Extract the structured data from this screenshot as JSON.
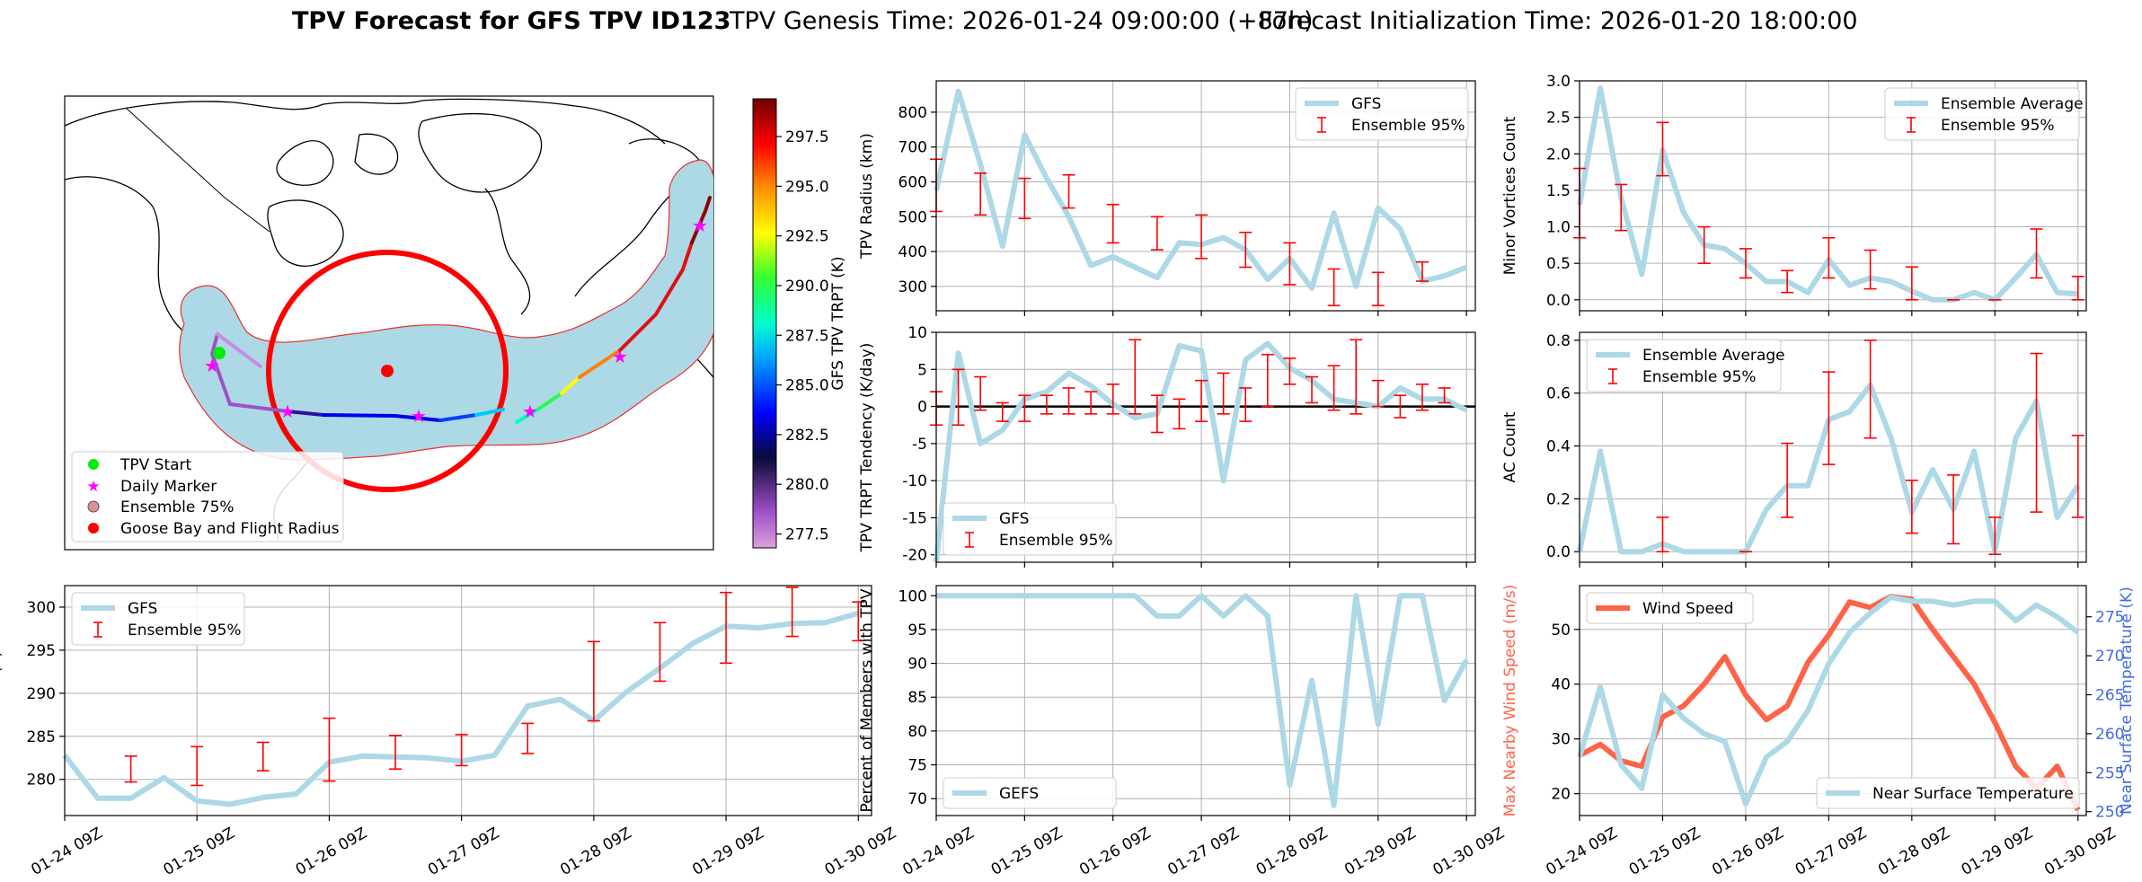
{
  "figure": {
    "title_main": "TPV Forecast for GFS TPV ID123",
    "title_genesis": "TPV Genesis Time: 2026-01-24 09:00:00 (+87h)",
    "title_init": "Forecast Initialization Time: 2026-01-20 18:00:00"
  },
  "colors": {
    "gfs_line": "#add8e6",
    "errorbar": "#ff0000",
    "wind": "#ff6347",
    "temp_axis": "#4169e1",
    "buffer_fill": "#add8e6",
    "circle": "#ff0000"
  },
  "map_panel": {
    "colorbar_label": "GFS TPV TRPT (K)",
    "colorbar_ticks": [
      "277.5",
      "280.0",
      "282.5",
      "285.0",
      "287.5",
      "290.0",
      "292.5",
      "295.0",
      "297.5"
    ],
    "colorbar_range": [
      276.8,
      299.4
    ],
    "legend": [
      {
        "label": "TPV Start",
        "icon": "green-dot"
      },
      {
        "label": "Daily Marker",
        "icon": "magenta-star"
      },
      {
        "label": "Ensemble 75%",
        "icon": "ensemble-circle"
      },
      {
        "label": "Goose Bay and Flight Radius",
        "icon": "red-dot"
      }
    ]
  },
  "time_ticks": [
    "01-24 09Z",
    "01-25 09Z",
    "01-26 09Z",
    "01-27 09Z",
    "01-28 09Z",
    "01-29 09Z",
    "01-30 09Z"
  ],
  "chart_data": [
    {
      "id": "radius",
      "type": "line",
      "ylabel": "TPV Radius (km)",
      "ylim": [
        230,
        890
      ],
      "yticks": [
        "300",
        "400",
        "500",
        "600",
        "700",
        "800"
      ],
      "ytick_values": [
        300,
        400,
        500,
        600,
        700,
        800
      ],
      "legend": [
        "GFS",
        "Ensemble 95%"
      ],
      "legend_pos": "top-right",
      "x": [
        0,
        0.25,
        0.5,
        0.75,
        1,
        1.25,
        1.5,
        1.75,
        2,
        2.25,
        2.5,
        2.75,
        3,
        3.25,
        3.5,
        3.75,
        4,
        4.25,
        4.5,
        4.75,
        5,
        5.25,
        5.5,
        5.75,
        6
      ],
      "series": [
        {
          "name": "GFS",
          "values": [
            575,
            860,
            650,
            415,
            735,
            610,
            500,
            360,
            385,
            355,
            325,
            425,
            420,
            440,
            405,
            320,
            380,
            295,
            510,
            300,
            525,
            465,
            315,
            330,
            355
          ]
        }
      ],
      "errorbars": [
        {
          "x": 0,
          "lo": 515,
          "hi": 665
        },
        {
          "x": 0.5,
          "lo": 505,
          "hi": 625
        },
        {
          "x": 1,
          "lo": 495,
          "hi": 610
        },
        {
          "x": 1.5,
          "lo": 525,
          "hi": 620
        },
        {
          "x": 2,
          "lo": 425,
          "hi": 535
        },
        {
          "x": 2.5,
          "lo": 405,
          "hi": 500
        },
        {
          "x": 3,
          "lo": 380,
          "hi": 505
        },
        {
          "x": 3.5,
          "lo": 355,
          "hi": 455
        },
        {
          "x": 4,
          "lo": 305,
          "hi": 425
        },
        {
          "x": 4.5,
          "lo": 245,
          "hi": 350
        },
        {
          "x": 5,
          "lo": 245,
          "hi": 340
        },
        {
          "x": 5.5,
          "lo": 315,
          "hi": 370
        }
      ]
    },
    {
      "id": "minor",
      "type": "line",
      "ylabel": "Minor Vortices Count",
      "ylim": [
        -0.15,
        3.0
      ],
      "yticks": [
        "0.0",
        "0.5",
        "1.0",
        "1.5",
        "2.0",
        "2.5",
        "3.0"
      ],
      "ytick_values": [
        0,
        0.5,
        1.0,
        1.5,
        2.0,
        2.5,
        3.0
      ],
      "legend": [
        "Ensemble Average",
        "Ensemble 95%"
      ],
      "legend_pos": "top-right",
      "x": [
        0,
        0.25,
        0.5,
        0.75,
        1,
        1.25,
        1.5,
        1.75,
        2,
        2.25,
        2.5,
        2.75,
        3,
        3.25,
        3.5,
        3.75,
        4,
        4.25,
        4.5,
        4.75,
        5,
        5.25,
        5.5,
        5.75,
        6
      ],
      "series": [
        {
          "name": "Ensemble Average",
          "values": [
            1.3,
            2.9,
            1.4,
            0.35,
            2.05,
            1.2,
            0.75,
            0.7,
            0.5,
            0.25,
            0.25,
            0.1,
            0.55,
            0.2,
            0.3,
            0.25,
            0.12,
            0.0,
            0.0,
            0.1,
            0.0,
            0.3,
            0.62,
            0.1,
            0.08
          ]
        }
      ],
      "errorbars": [
        {
          "x": 0,
          "lo": 0.85,
          "hi": 1.8
        },
        {
          "x": 0.5,
          "lo": 0.95,
          "hi": 1.58
        },
        {
          "x": 1,
          "lo": 1.7,
          "hi": 2.43
        },
        {
          "x": 1.5,
          "lo": 0.5,
          "hi": 1.0
        },
        {
          "x": 2,
          "lo": 0.3,
          "hi": 0.7
        },
        {
          "x": 2.5,
          "lo": 0.1,
          "hi": 0.4
        },
        {
          "x": 3,
          "lo": 0.3,
          "hi": 0.85
        },
        {
          "x": 3.5,
          "lo": 0.15,
          "hi": 0.68
        },
        {
          "x": 4,
          "lo": 0.0,
          "hi": 0.45
        },
        {
          "x": 4.5,
          "lo": 0.0,
          "hi": 0.0
        },
        {
          "x": 5,
          "lo": 0.0,
          "hi": 0.0
        },
        {
          "x": 5.5,
          "lo": 0.3,
          "hi": 0.97
        },
        {
          "x": 6,
          "lo": 0.0,
          "hi": 0.32
        }
      ]
    },
    {
      "id": "tendency",
      "type": "line",
      "ylabel": "TPV TRPT Tendency (K/day)",
      "ylim": [
        -21,
        10
      ],
      "yticks": [
        "-20",
        "-15",
        "-10",
        "-5",
        "0",
        "5",
        "10"
      ],
      "ytick_values": [
        -20,
        -15,
        -10,
        -5,
        0,
        5,
        10
      ],
      "zero_line": true,
      "legend": [
        "GFS",
        "Ensemble 95%"
      ],
      "legend_pos": "bottom-left",
      "x": [
        0,
        0.25,
        0.5,
        0.75,
        1,
        1.25,
        1.5,
        1.75,
        2,
        2.25,
        2.5,
        2.75,
        3,
        3.25,
        3.5,
        3.75,
        4,
        4.25,
        4.5,
        4.75,
        5,
        5.25,
        5.5,
        5.75,
        6
      ],
      "series": [
        {
          "name": "GFS",
          "values": [
            -21,
            7.2,
            -5,
            -3.2,
            1,
            2,
            4.5,
            2.8,
            0.3,
            -1.5,
            -1,
            8.2,
            7.5,
            -10,
            6.3,
            8.5,
            5.2,
            3.5,
            1,
            0.5,
            0,
            2.5,
            1,
            1,
            -0.5
          ]
        }
      ],
      "errorbars": [
        {
          "x": 0,
          "lo": -2.5,
          "hi": 2
        },
        {
          "x": 0.25,
          "lo": -2.5,
          "hi": 5
        },
        {
          "x": 0.5,
          "lo": -0.5,
          "hi": 4
        },
        {
          "x": 0.75,
          "lo": -2,
          "hi": 0.5
        },
        {
          "x": 1,
          "lo": -2,
          "hi": 1.5
        },
        {
          "x": 1.25,
          "lo": -1,
          "hi": 1.5
        },
        {
          "x": 1.5,
          "lo": -1,
          "hi": 2.5
        },
        {
          "x": 1.75,
          "lo": -1,
          "hi": 2
        },
        {
          "x": 2,
          "lo": -1,
          "hi": 3
        },
        {
          "x": 2.25,
          "lo": -1,
          "hi": 9
        },
        {
          "x": 2.5,
          "lo": -3.5,
          "hi": 1.5
        },
        {
          "x": 2.75,
          "lo": -3,
          "hi": 1
        },
        {
          "x": 3,
          "lo": -2,
          "hi": 3.5
        },
        {
          "x": 3.25,
          "lo": -1,
          "hi": 4.5
        },
        {
          "x": 3.5,
          "lo": -2,
          "hi": 2.5
        },
        {
          "x": 3.75,
          "lo": 0,
          "hi": 7
        },
        {
          "x": 4,
          "lo": 3,
          "hi": 6.5
        },
        {
          "x": 4.25,
          "lo": 0.5,
          "hi": 4
        },
        {
          "x": 4.5,
          "lo": -0.5,
          "hi": 5.5
        },
        {
          "x": 4.75,
          "lo": -1,
          "hi": 9
        },
        {
          "x": 5,
          "lo": 0,
          "hi": 3.5
        },
        {
          "x": 5.25,
          "lo": -1.5,
          "hi": 1.5
        },
        {
          "x": 5.5,
          "lo": -0.5,
          "hi": 3
        },
        {
          "x": 5.75,
          "lo": 0.5,
          "hi": 2.5
        }
      ]
    },
    {
      "id": "ac",
      "type": "line",
      "ylabel": "AC Count",
      "ylim": [
        -0.04,
        0.83
      ],
      "yticks": [
        "0.0",
        "0.2",
        "0.4",
        "0.6",
        "0.8"
      ],
      "ytick_values": [
        0,
        0.2,
        0.4,
        0.6,
        0.8
      ],
      "legend": [
        "Ensemble Average",
        "Ensemble 95%"
      ],
      "legend_pos": "top-left",
      "x": [
        0,
        0.25,
        0.5,
        0.75,
        1,
        1.25,
        1.5,
        1.75,
        2,
        2.25,
        2.5,
        2.75,
        3,
        3.25,
        3.5,
        3.75,
        4,
        4.25,
        4.5,
        4.75,
        5,
        5.25,
        5.5,
        5.75,
        6
      ],
      "series": [
        {
          "name": "Ensemble Average",
          "values": [
            0,
            0.38,
            0,
            0,
            0.03,
            0,
            0,
            0,
            0,
            0.16,
            0.25,
            0.25,
            0.5,
            0.53,
            0.63,
            0.43,
            0.15,
            0.31,
            0.16,
            0.38,
            0,
            0.43,
            0.57,
            0.13,
            0.25
          ]
        }
      ],
      "errorbars": [
        {
          "x": 1,
          "lo": 0,
          "hi": 0.13
        },
        {
          "x": 2,
          "lo": 0,
          "hi": 0
        },
        {
          "x": 2.5,
          "lo": 0.13,
          "hi": 0.41
        },
        {
          "x": 3,
          "lo": 0.33,
          "hi": 0.68
        },
        {
          "x": 3.5,
          "lo": 0.43,
          "hi": 0.8
        },
        {
          "x": 4,
          "lo": 0.07,
          "hi": 0.27
        },
        {
          "x": 4.5,
          "lo": 0.03,
          "hi": 0.29
        },
        {
          "x": 5,
          "lo": -0.01,
          "hi": 0.13
        },
        {
          "x": 5.5,
          "lo": 0.15,
          "hi": 0.75
        },
        {
          "x": 6,
          "lo": 0.13,
          "hi": 0.44
        }
      ]
    },
    {
      "id": "trpt",
      "type": "line",
      "ylabel": "TPV TRPT (K)",
      "ylim": [
        275.8,
        302.5
      ],
      "yticks": [
        "280",
        "285",
        "290",
        "295",
        "300"
      ],
      "ytick_values": [
        280,
        285,
        290,
        295,
        300
      ],
      "legend": [
        "GFS",
        "Ensemble 95%"
      ],
      "legend_pos": "top-left",
      "x": [
        0,
        0.25,
        0.5,
        0.75,
        1,
        1.25,
        1.5,
        1.75,
        2,
        2.25,
        2.5,
        2.75,
        3,
        3.25,
        3.5,
        3.75,
        4,
        4.25,
        4.5,
        4.75,
        5,
        5.25,
        5.5,
        5.75,
        6
      ],
      "series": [
        {
          "name": "GFS",
          "values": [
            282.8,
            277.8,
            277.8,
            280.2,
            277.5,
            277.1,
            277.9,
            278.3,
            282,
            282.7,
            282.6,
            282.5,
            282.1,
            282.8,
            288.5,
            289.3,
            286.8,
            290.2,
            292.9,
            295.8,
            297.8,
            297.6,
            298.1,
            298.2,
            299.3
          ]
        }
      ],
      "errorbars": [
        {
          "x": 0.5,
          "lo": 279.7,
          "hi": 282.7
        },
        {
          "x": 1,
          "lo": 279.3,
          "hi": 283.8
        },
        {
          "x": 1.5,
          "lo": 281,
          "hi": 284.3
        },
        {
          "x": 2,
          "lo": 279.8,
          "hi": 287.1
        },
        {
          "x": 2.5,
          "lo": 281.2,
          "hi": 285.1
        },
        {
          "x": 3,
          "lo": 281.6,
          "hi": 285.2
        },
        {
          "x": 3.5,
          "lo": 283,
          "hi": 286.5
        },
        {
          "x": 4,
          "lo": 286.8,
          "hi": 296
        },
        {
          "x": 4.5,
          "lo": 291.4,
          "hi": 298.2
        },
        {
          "x": 5,
          "lo": 293.5,
          "hi": 301.7
        },
        {
          "x": 5.5,
          "lo": 296.6,
          "hi": 302.3
        },
        {
          "x": 6,
          "lo": 296.1,
          "hi": 300.6
        }
      ]
    },
    {
      "id": "percent",
      "type": "line",
      "ylabel": "Percent of Members with TPV",
      "ylim": [
        67.5,
        101.5
      ],
      "yticks": [
        "70",
        "75",
        "80",
        "85",
        "90",
        "95",
        "100"
      ],
      "ytick_values": [
        70,
        75,
        80,
        85,
        90,
        95,
        100
      ],
      "legend": [
        "GEFS"
      ],
      "legend_pos": "bottom-left",
      "x": [
        0,
        0.25,
        0.5,
        0.75,
        1,
        1.25,
        1.5,
        1.75,
        2,
        2.25,
        2.5,
        2.75,
        3,
        3.25,
        3.5,
        3.75,
        4,
        4.25,
        4.5,
        4.75,
        5,
        5.25,
        5.5,
        5.75,
        6
      ],
      "series": [
        {
          "name": "GEFS",
          "values": [
            100,
            100,
            100,
            100,
            100,
            100,
            100,
            100,
            100,
            100,
            97,
            97,
            100,
            97,
            100,
            97,
            72,
            87.5,
            69,
            100,
            81,
            100,
            100,
            84.5,
            90.5
          ]
        }
      ]
    },
    {
      "id": "wind_temp",
      "type": "line",
      "ylabel": "Max Nearby Wind Speed (m/s)",
      "ylabel_right": "Near Surface Temperature (K)",
      "ylim": [
        16,
        58
      ],
      "yticks": [
        "20",
        "30",
        "40",
        "50"
      ],
      "ytick_values": [
        20,
        30,
        40,
        50
      ],
      "ylim_right": [
        249.5,
        279
      ],
      "yticks_right": [
        "250",
        "255",
        "260",
        "265",
        "270",
        "275"
      ],
      "ytick_values_right": [
        250,
        255,
        260,
        265,
        270,
        275
      ],
      "legend": [
        "Wind Speed",
        "Near Surface Temperature"
      ],
      "x": [
        0,
        0.25,
        0.5,
        0.75,
        1,
        1.25,
        1.5,
        1.75,
        2,
        2.25,
        2.5,
        2.75,
        3,
        3.25,
        3.5,
        3.75,
        4,
        4.25,
        4.5,
        4.75,
        5,
        5.25,
        5.5,
        5.75,
        6
      ],
      "series": [
        {
          "name": "Wind Speed",
          "axis": "left",
          "values": [
            27,
            29,
            26,
            25,
            34,
            36,
            40,
            45,
            38,
            33.5,
            36,
            44,
            49,
            55,
            54,
            56,
            55.5,
            50,
            45,
            40,
            33,
            25,
            21,
            25,
            17
          ]
        },
        {
          "name": "Near Surface Temperature",
          "axis": "right",
          "values": [
            257,
            266,
            256,
            253,
            265,
            262,
            260,
            259,
            251,
            257,
            259,
            263,
            269,
            273,
            275.5,
            277.5,
            277,
            277,
            276.5,
            277,
            277,
            274.5,
            276.5,
            275,
            273
          ]
        }
      ]
    }
  ]
}
